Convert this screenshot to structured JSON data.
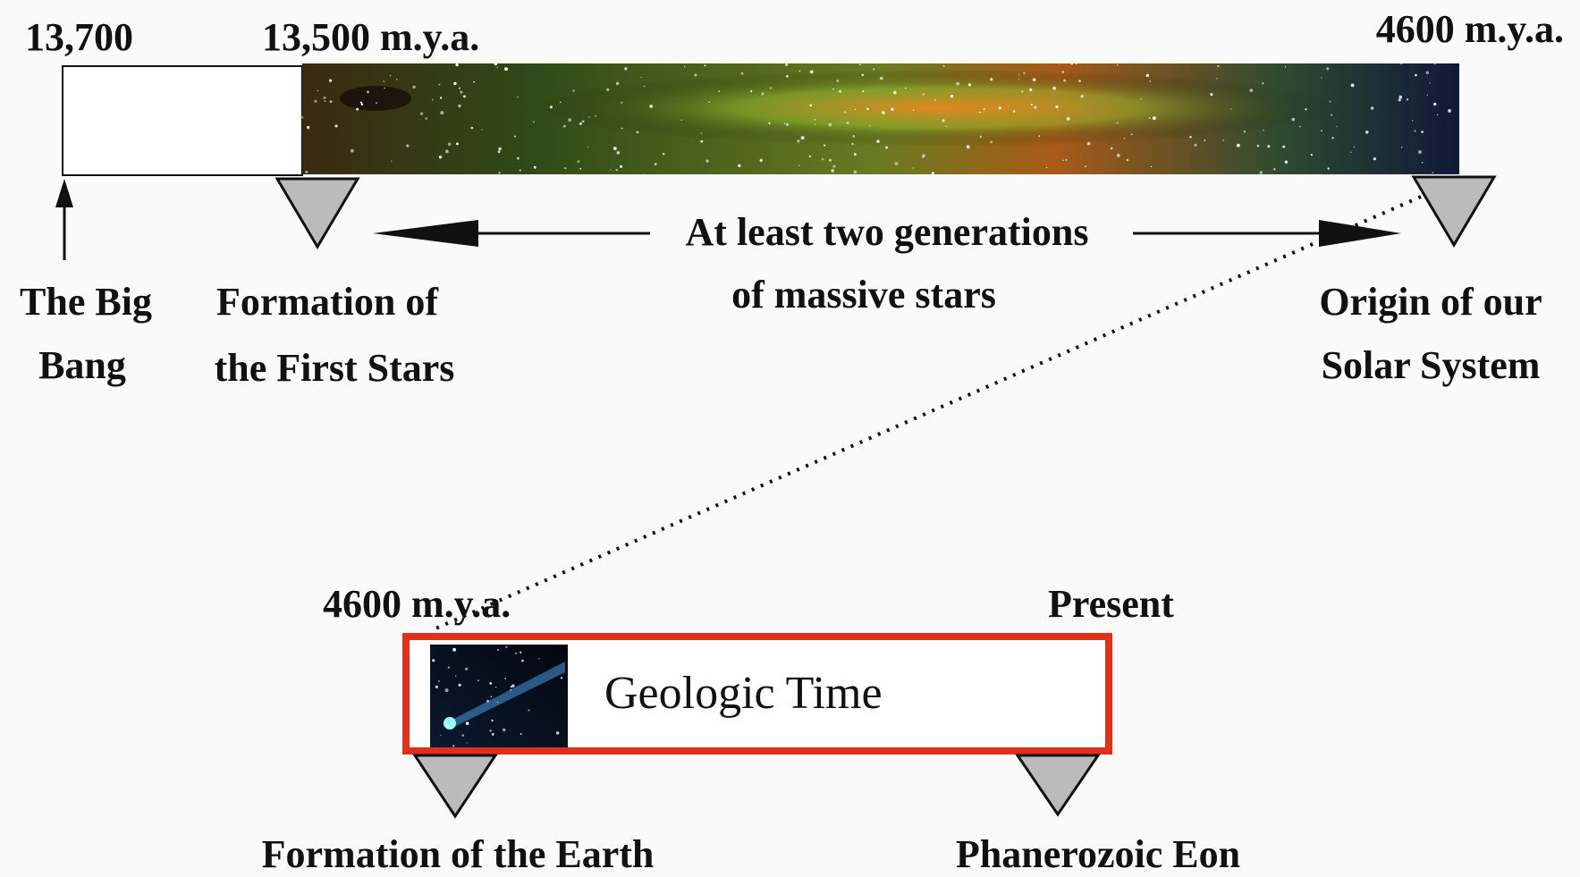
{
  "top_timeline": {
    "start_label": "13,700",
    "first_stars_label": "13,500 m.y.a.",
    "end_label": "4600 m.y.a.",
    "big_bang": [
      "The Big",
      "Bang"
    ],
    "first_stars": [
      "Formation of",
      "the First Stars"
    ],
    "generations": [
      "At least two generations",
      "of massive stars"
    ],
    "solar_system": [
      "Origin of our",
      "Solar System"
    ]
  },
  "bottom_timeline": {
    "start_label": "4600 m.y.a.",
    "end_label": "Present",
    "title": "Geologic Time",
    "earth": "Formation of the Earth",
    "eon": "Phanerozoic Eon"
  }
}
